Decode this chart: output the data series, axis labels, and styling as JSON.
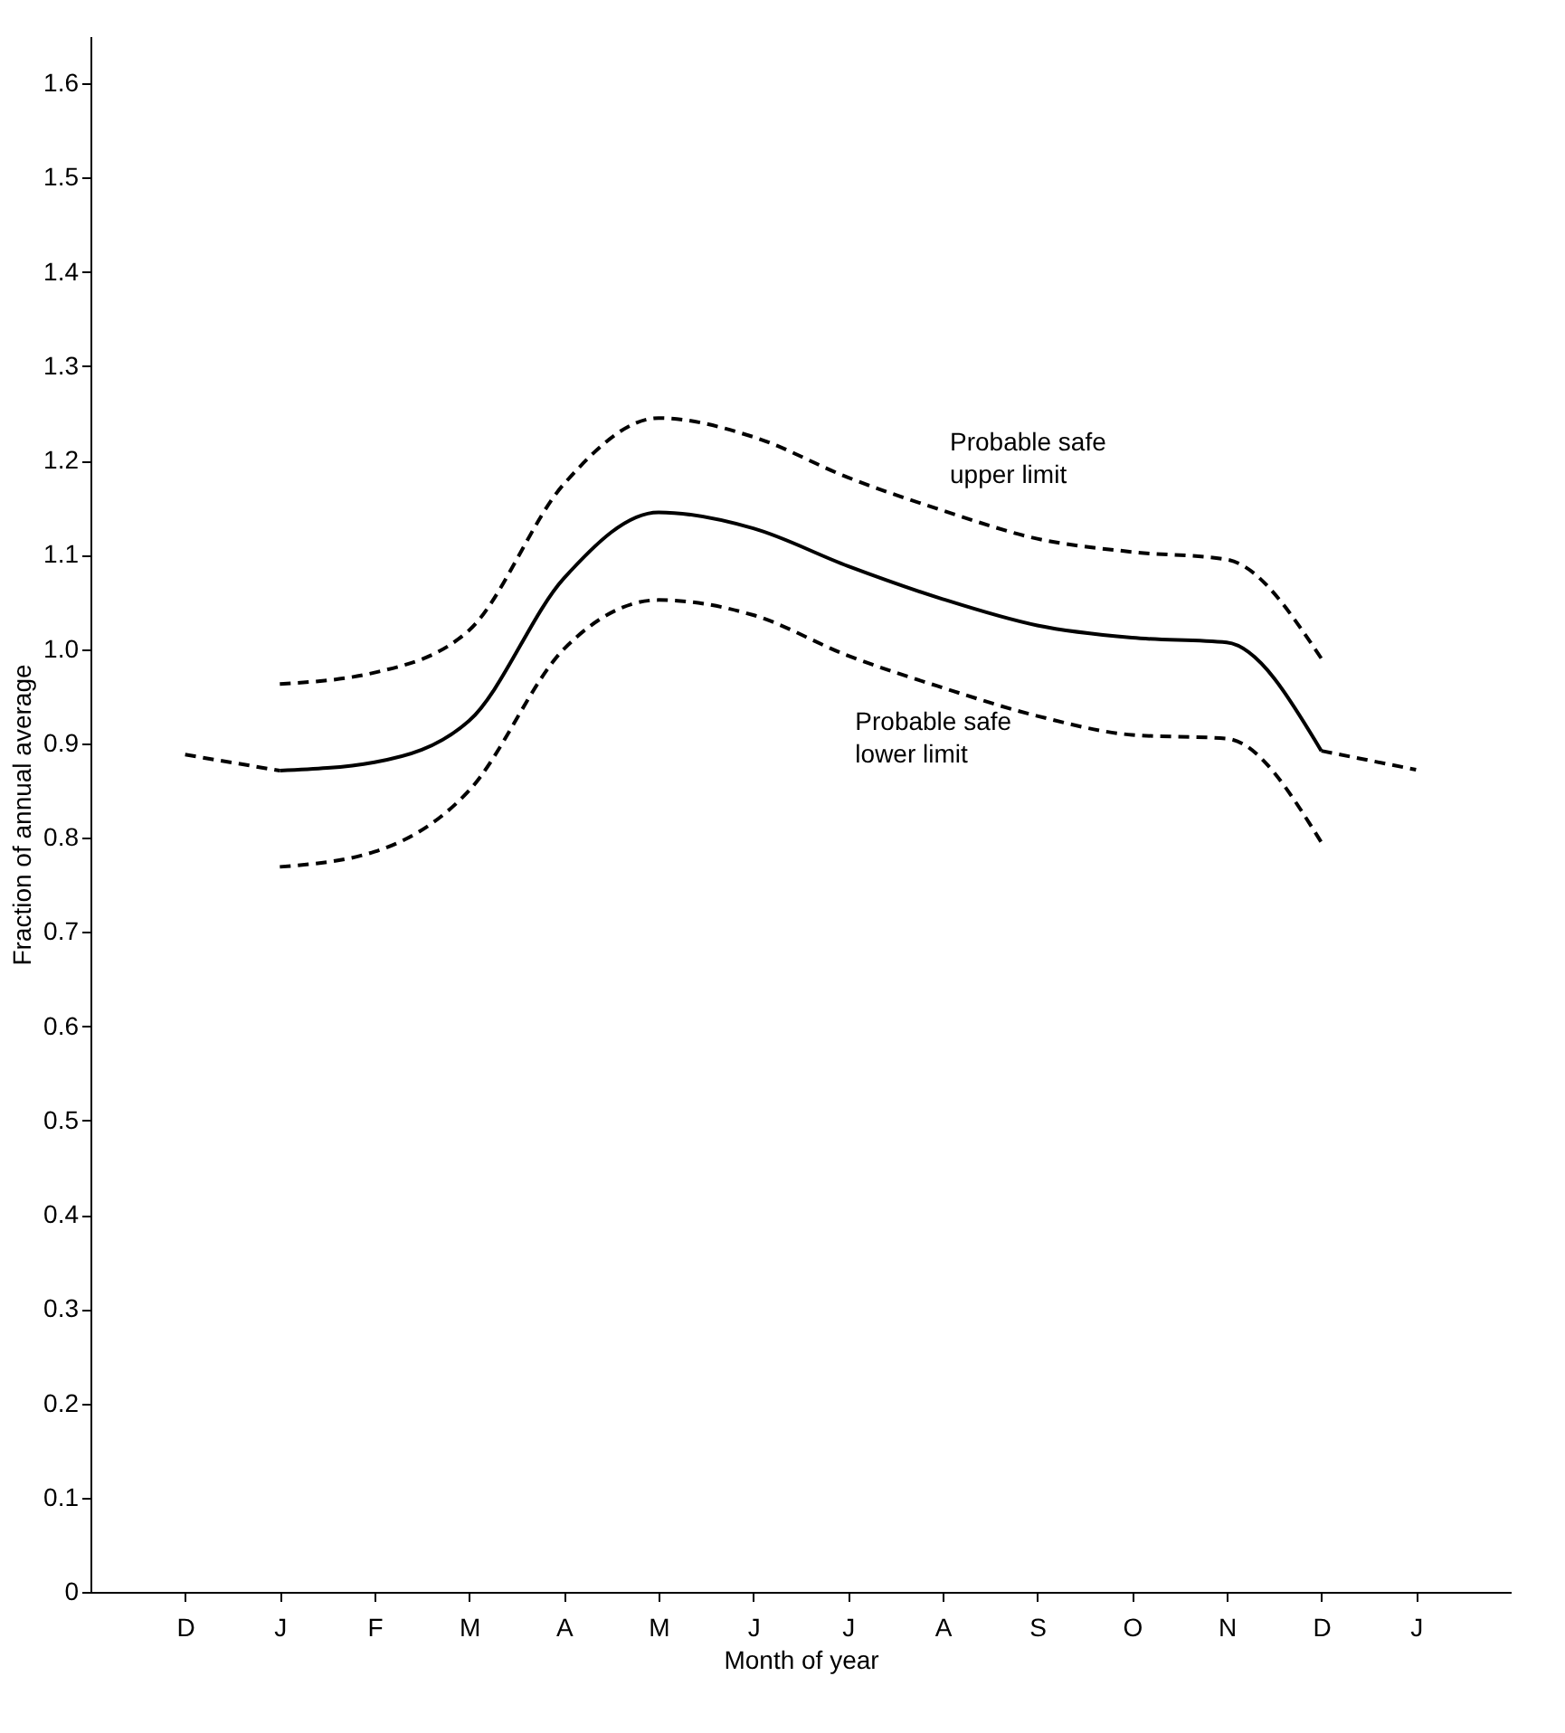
{
  "chart_data": {
    "type": "line",
    "xlabel": "Month of year",
    "ylabel": "Fraction of annual average",
    "categories": [
      "D",
      "J",
      "F",
      "M",
      "A",
      "M",
      "J",
      "J",
      "A",
      "S",
      "O",
      "N",
      "D",
      "J"
    ],
    "ylim": [
      0,
      1.65
    ],
    "yticks": [
      0,
      0.1,
      0.2,
      0.3,
      0.4,
      0.5,
      0.6,
      0.7,
      0.8,
      0.9,
      {
        "value": 1,
        "label": "1.0"
      },
      1.1,
      1.2,
      1.3,
      1.4,
      1.5,
      1.6
    ],
    "grid": false,
    "series": [
      {
        "color": "#000000",
        "line_style": "solid",
        "values": [
          null,
          0.871,
          0.88,
          0.924,
          1.075,
          1.145,
          1.128,
          1.088,
          1.053,
          1.025,
          1.012,
          1.007,
          0.892,
          null
        ]
      },
      {
        "color": "#000000",
        "line_style": "dashed",
        "values": [
          0.888,
          0.871,
          null,
          null,
          null,
          null,
          null,
          null,
          null,
          null,
          null,
          null,
          null,
          null
        ]
      },
      {
        "color": "#000000",
        "line_style": "dashed",
        "values": [
          null,
          null,
          null,
          null,
          null,
          null,
          null,
          null,
          null,
          null,
          null,
          null,
          0.892,
          0.872
        ]
      },
      {
        "name": "Probable safe upper limit",
        "color": "#000000",
        "line_style": "dashed",
        "values": [
          null,
          0.963,
          0.975,
          1.02,
          1.175,
          1.245,
          1.225,
          1.182,
          1.147,
          1.117,
          1.103,
          1.095,
          0.99,
          null
        ]
      },
      {
        "name": "Probable safe lower limit",
        "color": "#000000",
        "line_style": "dashed",
        "values": [
          null,
          0.769,
          0.785,
          0.85,
          1.0,
          1.052,
          1.036,
          0.993,
          0.959,
          0.929,
          0.909,
          0.905,
          0.795,
          null
        ]
      }
    ]
  }
}
